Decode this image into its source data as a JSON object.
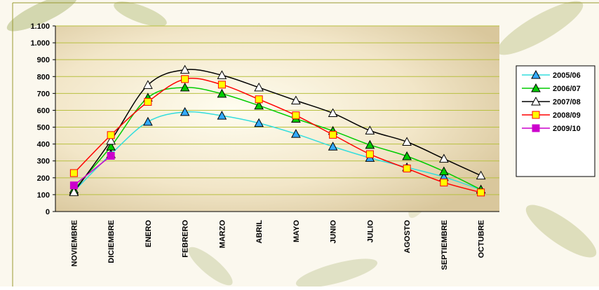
{
  "chart_data": {
    "type": "line",
    "categories": [
      "NOVIEMBRE",
      "DICIEMBRE",
      "ENERO",
      "FEBRERO",
      "MARZO",
      "ABRIL",
      "MAYO",
      "JUNIO",
      "JULIO",
      "AGOSTO",
      "SEPTIEMBRE",
      "OCTUBRE"
    ],
    "ylim": [
      0,
      1100
    ],
    "yticks": [
      0,
      100,
      200,
      300,
      400,
      500,
      600,
      700,
      800,
      900,
      {
        "value": 1000,
        "label": "1.000"
      },
      {
        "value": 1100,
        "label": "1.100"
      }
    ],
    "grid": true,
    "smooth": true,
    "legend": "right",
    "series": [
      {
        "name": "2005/06",
        "color": "#33dddd",
        "marker": "triangle",
        "marker_fill": "#33aaff",
        "values": [
          120,
          340,
          532,
          590,
          568,
          524,
          460,
          385,
          318,
          262,
          205,
          130
        ]
      },
      {
        "name": "2006/07",
        "color": "#00cc00",
        "marker": "triangle",
        "marker_fill": "#00cc00",
        "values": [
          130,
          385,
          675,
          735,
          698,
          628,
          550,
          478,
          395,
          328,
          238,
          130
        ]
      },
      {
        "name": "2007/08",
        "color": "#000000",
        "marker": "triangle",
        "marker_fill": "#ffffff",
        "values": [
          115,
          420,
          750,
          840,
          808,
          735,
          658,
          583,
          480,
          413,
          313,
          213
        ]
      },
      {
        "name": "2008/09",
        "color": "#ff0000",
        "marker": "square",
        "marker_fill": "#ffff00",
        "values": [
          228,
          453,
          650,
          785,
          752,
          665,
          570,
          455,
          340,
          255,
          172,
          113
        ]
      },
      {
        "name": "2009/10",
        "color": "#cc00cc",
        "marker": "square",
        "marker_fill": "#cc00cc",
        "values": [
          155,
          330,
          null,
          null,
          null,
          null,
          null,
          null,
          null,
          null,
          null,
          null
        ]
      }
    ]
  }
}
